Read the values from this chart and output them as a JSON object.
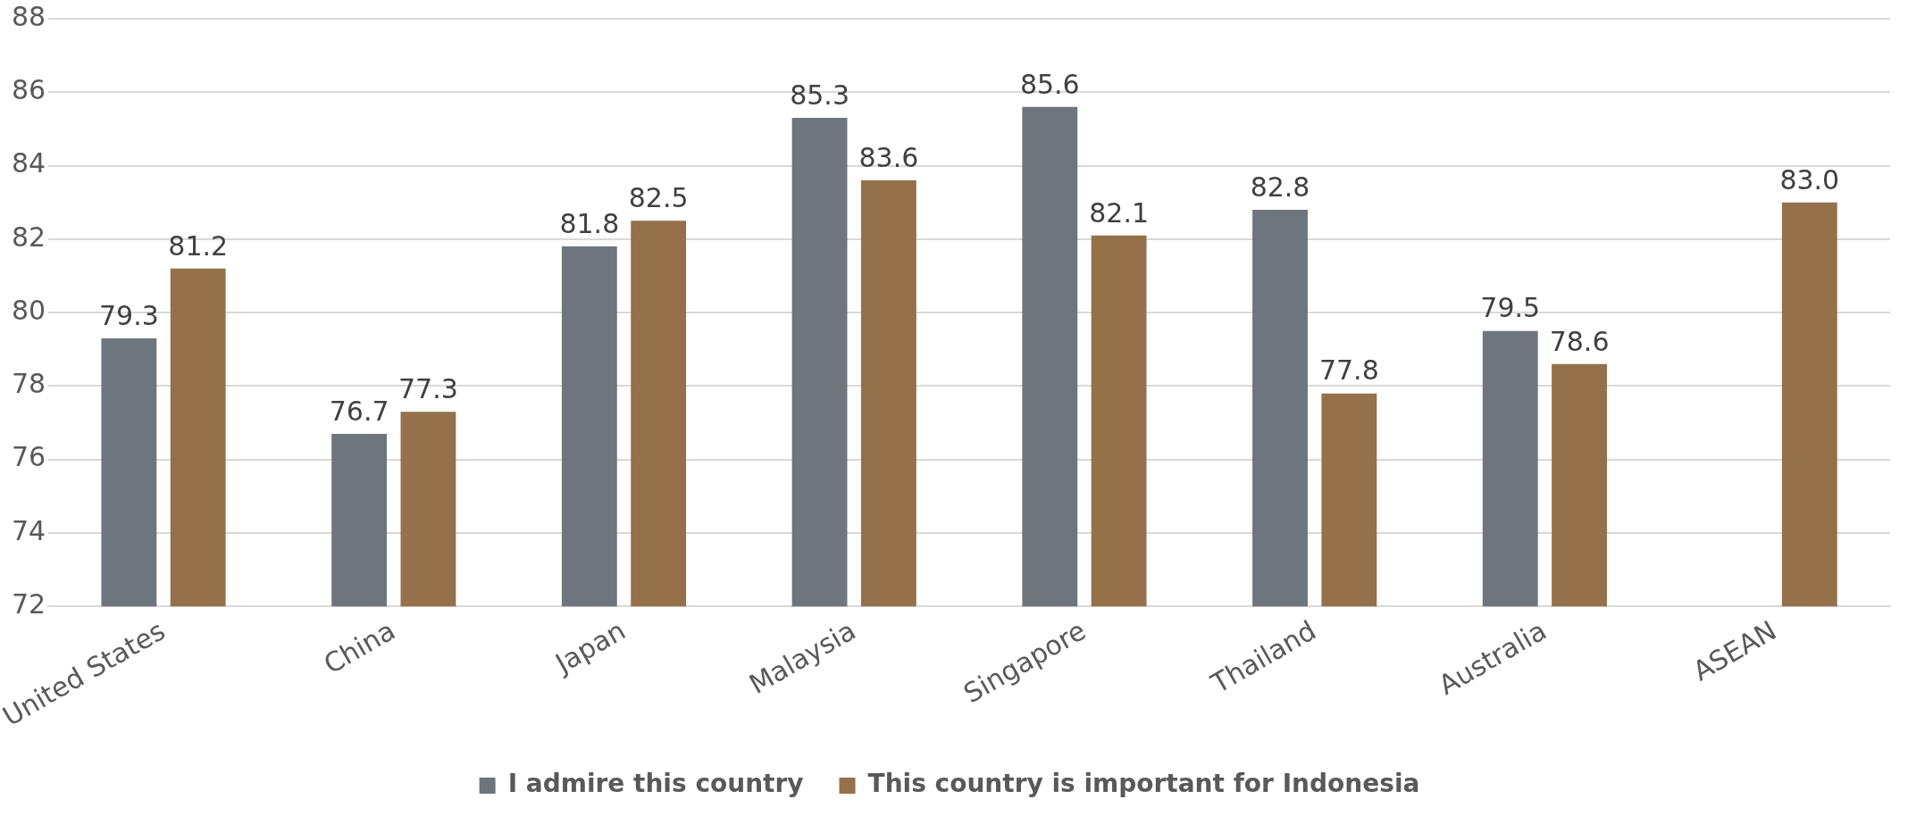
{
  "chart_data": {
    "type": "bar",
    "categories": [
      "United States",
      "China",
      "Japan",
      "Malaysia",
      "Singapore",
      "Thailand",
      "Australia",
      "ASEAN"
    ],
    "series": [
      {
        "name": "I admire this country",
        "color": "#6e757c",
        "values": [
          79.3,
          76.7,
          81.8,
          85.3,
          85.6,
          82.8,
          79.5,
          null
        ],
        "value_labels": [
          "79.3",
          "76.7",
          "81.8",
          "85.3",
          "85.6",
          "82.8",
          "79.5",
          null
        ]
      },
      {
        "name": "This country is important for Indonesia",
        "color": "#94714b",
        "values": [
          81.2,
          77.3,
          82.5,
          83.6,
          82.1,
          77.8,
          78.6,
          83.0
        ],
        "value_labels": [
          "81.2",
          "77.3",
          "82.5",
          "83.6",
          "82.1",
          "77.8",
          "78.6",
          "83.0"
        ]
      }
    ],
    "ylim": [
      72,
      88
    ],
    "yticks": [
      72,
      74,
      76,
      78,
      80,
      82,
      84,
      86,
      88
    ],
    "grid": "y",
    "legend": "bottom"
  }
}
